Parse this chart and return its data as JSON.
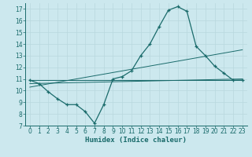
{
  "xlabel": "Humidex (Indice chaleur)",
  "bg_color": "#cce8ee",
  "line_color": "#1a6b6b",
  "grid_color": "#b8d8de",
  "xlim": [
    -0.5,
    23.5
  ],
  "ylim": [
    7,
    17.5
  ],
  "yticks": [
    7,
    8,
    9,
    10,
    11,
    12,
    13,
    14,
    15,
    16,
    17
  ],
  "xticks": [
    0,
    1,
    2,
    3,
    4,
    5,
    6,
    7,
    8,
    9,
    10,
    11,
    12,
    13,
    14,
    15,
    16,
    17,
    18,
    19,
    20,
    21,
    22,
    23
  ],
  "line1_x": [
    0,
    1,
    2,
    3,
    4,
    5,
    6,
    7,
    8,
    9,
    10,
    11,
    12,
    13,
    14,
    15,
    16,
    17,
    18,
    19,
    20,
    21,
    22,
    23
  ],
  "line1_y": [
    10.9,
    10.6,
    9.9,
    9.3,
    8.8,
    8.8,
    8.2,
    7.2,
    8.8,
    11.0,
    11.2,
    11.7,
    13.0,
    14.0,
    15.5,
    16.9,
    17.2,
    16.8,
    13.8,
    13.0,
    12.1,
    11.5,
    10.9,
    10.9
  ],
  "line2_x": [
    0,
    23
  ],
  "line2_y": [
    10.6,
    11.0
  ],
  "line3_x": [
    0,
    23
  ],
  "line3_y": [
    10.3,
    13.5
  ],
  "line4_x": [
    0,
    23
  ],
  "line4_y": [
    10.9,
    10.9
  ]
}
